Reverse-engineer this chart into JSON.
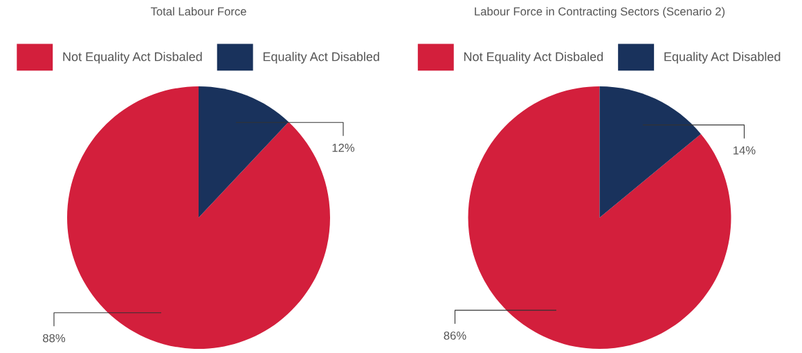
{
  "chart_data": [
    {
      "type": "pie",
      "title": "Total Labour Force",
      "categories": [
        "Not Equality Act Disbaled",
        "Equality Act Disabled"
      ],
      "values": [
        88,
        12
      ],
      "colors": [
        "#d31f3c",
        "#19325c"
      ],
      "value_labels": [
        "88%",
        "12%"
      ],
      "legend": "top"
    },
    {
      "type": "pie",
      "title": "Labour Force in Contracting Sectors (Scenario 2)",
      "categories": [
        "Not Equality Act Disbaled",
        "Equality Act Disabled"
      ],
      "values": [
        86,
        14
      ],
      "colors": [
        "#d31f3c",
        "#19325c"
      ],
      "value_labels": [
        "86%",
        "14%"
      ],
      "legend": "top"
    }
  ]
}
